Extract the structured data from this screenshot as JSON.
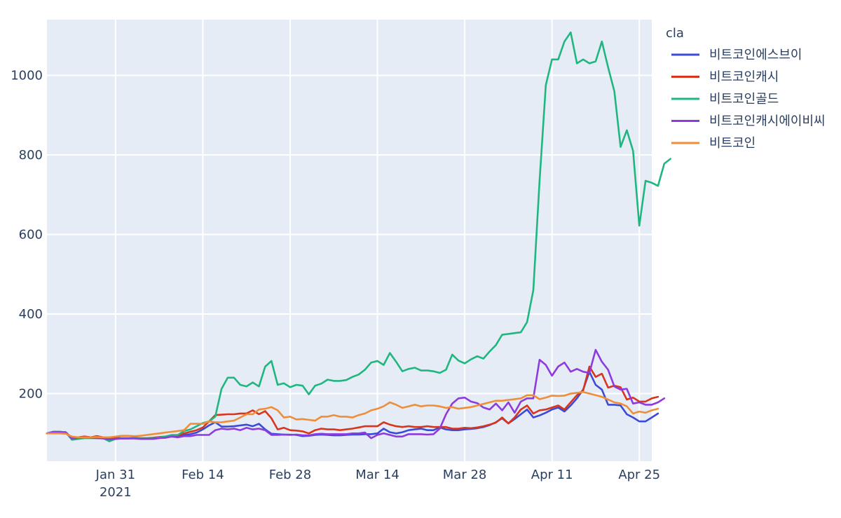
{
  "chart_data": {
    "type": "line",
    "x_start": "2021-01-20",
    "y_ticks": [
      "200",
      "400",
      "600",
      "800",
      "1000"
    ],
    "y_tick_values": [
      200,
      400,
      600,
      800,
      1000
    ],
    "x_ticks": [
      {
        "date": "2021-01-31",
        "label": "Jan 31",
        "sublabel": "2021"
      },
      {
        "date": "2021-02-14",
        "label": "Feb 14",
        "sublabel": ""
      },
      {
        "date": "2021-02-28",
        "label": "Feb 28",
        "sublabel": ""
      },
      {
        "date": "2021-03-14",
        "label": "Mar 14",
        "sublabel": ""
      },
      {
        "date": "2021-03-28",
        "label": "Mar 28",
        "sublabel": ""
      },
      {
        "date": "2021-04-11",
        "label": "Apr 11",
        "sublabel": ""
      },
      {
        "date": "2021-04-25",
        "label": "Apr 25",
        "sublabel": ""
      }
    ],
    "xlim": [
      "2021-01-20",
      "2021-04-27"
    ],
    "ylim": [
      30,
      1140
    ],
    "grid": true,
    "legend": {
      "title": "cla",
      "position": "right"
    },
    "series": [
      {
        "name": "비트코인에스브이",
        "color": "#3b4bd8",
        "values": [
          100,
          104,
          104,
          103,
          88,
          90,
          92,
          90,
          90,
          88,
          85,
          88,
          87,
          87,
          88,
          87,
          87,
          88,
          90,
          89,
          93,
          91,
          96,
          98,
          102,
          110,
          120,
          128,
          117,
          117,
          118,
          120,
          122,
          118,
          124,
          110,
          99,
          98,
          97,
          97,
          96,
          93,
          94,
          96,
          97,
          96,
          95,
          95,
          96,
          97,
          97,
          98,
          98,
          100,
          112,
          103,
          100,
          103,
          108,
          110,
          112,
          108,
          108,
          115,
          110,
          108,
          108,
          110,
          111,
          113,
          116,
          121,
          128,
          138,
          125,
          136,
          148,
          160,
          140,
          145,
          152,
          160,
          165,
          155,
          170,
          188,
          210,
          255,
          222,
          210,
          172,
          172,
          170,
          148,
          140,
          130,
          130,
          140,
          150
        ]
      },
      {
        "name": "비트코인캐시",
        "color": "#d9341c",
        "values": [
          100,
          104,
          104,
          103,
          88,
          90,
          92,
          90,
          93,
          90,
          88,
          89,
          88,
          88,
          89,
          88,
          88,
          89,
          91,
          92,
          95,
          95,
          100,
          104,
          108,
          115,
          130,
          146,
          147,
          148,
          148,
          150,
          150,
          158,
          148,
          156,
          138,
          110,
          114,
          108,
          107,
          105,
          100,
          108,
          112,
          110,
          110,
          108,
          110,
          112,
          115,
          118,
          118,
          118,
          128,
          122,
          118,
          116,
          118,
          116,
          116,
          118,
          116,
          116,
          116,
          112,
          112,
          114,
          113,
          115,
          118,
          122,
          127,
          140,
          125,
          140,
          160,
          170,
          150,
          158,
          160,
          165,
          170,
          160,
          178,
          196,
          208,
          268,
          242,
          250,
          215,
          220,
          216,
          185,
          190,
          180,
          180,
          188,
          192
        ]
      },
      {
        "name": "비트코인골드",
        "color": "#1fb77f",
        "values": [
          100,
          104,
          104,
          103,
          84,
          86,
          88,
          88,
          88,
          88,
          80,
          86,
          88,
          88,
          88,
          87,
          87,
          87,
          90,
          92,
          96,
          96,
          106,
          110,
          118,
          126,
          130,
          142,
          212,
          240,
          240,
          222,
          218,
          228,
          218,
          268,
          282,
          222,
          226,
          216,
          222,
          220,
          198,
          220,
          225,
          235,
          232,
          232,
          234,
          242,
          248,
          260,
          278,
          282,
          272,
          302,
          280,
          256,
          262,
          265,
          258,
          258,
          256,
          252,
          260,
          298,
          283,
          276,
          286,
          294,
          288,
          306,
          322,
          348,
          350,
          352,
          354,
          380,
          460,
          735,
          975,
          1040,
          1040,
          1085,
          1108,
          1030,
          1040,
          1030,
          1035,
          1085,
          1020,
          960,
          820,
          862,
          810,
          622,
          735,
          730,
          722,
          778,
          790
        ]
      },
      {
        "name": "비트코인캐시에이비씨",
        "color": "#8d3adf",
        "values": [
          100,
          103,
          103,
          102,
          87,
          89,
          90,
          89,
          88,
          87,
          85,
          86,
          87,
          87,
          87,
          86,
          86,
          86,
          88,
          89,
          92,
          90,
          93,
          93,
          96,
          96,
          96,
          108,
          112,
          110,
          112,
          108,
          114,
          110,
          112,
          108,
          96,
          96,
          97,
          96,
          97,
          95,
          95,
          98,
          99,
          98,
          98,
          98,
          98,
          100,
          100,
          102,
          88,
          96,
          100,
          96,
          92,
          92,
          98,
          98,
          98,
          97,
          98,
          112,
          148,
          175,
          188,
          190,
          180,
          176,
          165,
          160,
          175,
          158,
          178,
          152,
          180,
          188,
          188,
          285,
          272,
          245,
          268,
          278,
          255,
          262,
          255,
          252,
          310,
          280,
          260,
          218,
          210,
          212,
          175,
          178,
          172,
          172,
          178,
          188
        ]
      },
      {
        "name": "비트코인",
        "color": "#ef8e38",
        "values": [
          100,
          100,
          100,
          99,
          92,
          90,
          90,
          90,
          91,
          90,
          90,
          92,
          94,
          94,
          93,
          94,
          96,
          98,
          100,
          102,
          104,
          106,
          108,
          124,
          124,
          124,
          130,
          128,
          128,
          130,
          132,
          140,
          148,
          148,
          160,
          162,
          166,
          158,
          140,
          142,
          135,
          136,
          134,
          132,
          142,
          142,
          146,
          142,
          142,
          140,
          146,
          150,
          158,
          162,
          168,
          178,
          172,
          164,
          168,
          172,
          168,
          170,
          170,
          168,
          164,
          166,
          162,
          164,
          166,
          170,
          174,
          178,
          182,
          182,
          184,
          186,
          188,
          196,
          196,
          186,
          190,
          195,
          194,
          195,
          200,
          202,
          204,
          200,
          196,
          192,
          185,
          178,
          175,
          168,
          150,
          155,
          152,
          158,
          162
        ]
      }
    ]
  }
}
